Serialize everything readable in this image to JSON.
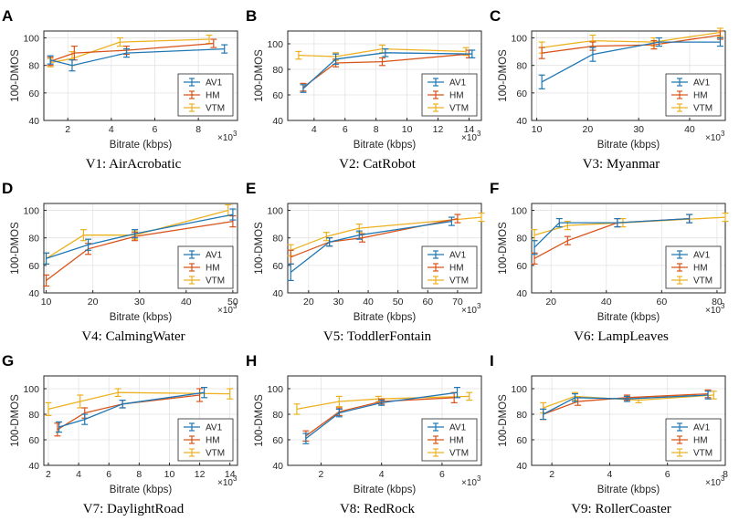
{
  "figure": {
    "y_label": "100-DMOS",
    "x_label": "Bitrate (kbps)",
    "x_multiplier_base": "×10",
    "x_multiplier_exp": "3",
    "legend": [
      "AV1",
      "HM",
      "VTM"
    ],
    "colors": {
      "AV1": "#1f77b4",
      "HM": "#d95319",
      "VTM": "#edb120"
    }
  },
  "chart_data": [
    {
      "type": "line",
      "letter": "A",
      "caption": "V1: AirAcrobatic",
      "xlim": [
        0.9,
        9.8
      ],
      "xticks": [
        2,
        4,
        6,
        8
      ],
      "ylim": [
        40,
        105
      ],
      "yticks": [
        40,
        60,
        80,
        100
      ],
      "series": [
        {
          "name": "AV1",
          "x": [
            1.2,
            2.2,
            4.7,
            9.2
          ],
          "y": [
            84,
            80,
            89,
            92
          ],
          "err": [
            3,
            4,
            3,
            3
          ]
        },
        {
          "name": "HM",
          "x": [
            1.2,
            2.3,
            4.7,
            8.7
          ],
          "y": [
            83,
            89,
            91,
            96
          ],
          "err": [
            3,
            5,
            3,
            3
          ]
        },
        {
          "name": "VTM",
          "x": [
            1.2,
            2.2,
            4.4,
            8.5
          ],
          "y": [
            82,
            85,
            97,
            99
          ],
          "err": [
            3,
            5,
            3,
            3
          ]
        }
      ]
    },
    {
      "type": "line",
      "letter": "B",
      "caption": "V2: CatRobot",
      "xlim": [
        2.3,
        14.8
      ],
      "xticks": [
        4,
        6,
        8,
        10,
        12,
        14
      ],
      "ylim": [
        40,
        110
      ],
      "yticks": [
        40,
        60,
        80,
        100
      ],
      "series": [
        {
          "name": "AV1",
          "x": [
            3.3,
            5.4,
            8.6,
            14.2
          ],
          "y": [
            65,
            88,
            93,
            92
          ],
          "err": [
            3,
            4,
            3,
            3
          ]
        },
        {
          "name": "HM",
          "x": [
            3.3,
            5.4,
            8.4,
            14.0
          ],
          "y": [
            66,
            85,
            86,
            92
          ],
          "err": [
            3,
            3,
            3,
            3
          ]
        },
        {
          "name": "VTM",
          "x": [
            3.0,
            5.4,
            8.4,
            13.8
          ],
          "y": [
            91,
            90,
            96,
            94
          ],
          "err": [
            3,
            3,
            3,
            3
          ]
        }
      ]
    },
    {
      "type": "line",
      "letter": "C",
      "caption": "V3: Myanmar",
      "xlim": [
        9,
        47
      ],
      "xticks": [
        10,
        20,
        30,
        40
      ],
      "ylim": [
        40,
        105
      ],
      "yticks": [
        40,
        60,
        80,
        100
      ],
      "series": [
        {
          "name": "AV1",
          "x": [
            11,
            21,
            34,
            46
          ],
          "y": [
            68,
            88,
            97,
            97
          ],
          "err": [
            5,
            5,
            3,
            3
          ]
        },
        {
          "name": "HM",
          "x": [
            11,
            21,
            33,
            46
          ],
          "y": [
            89,
            94,
            95,
            102
          ],
          "err": [
            4,
            3,
            3,
            3
          ]
        },
        {
          "name": "VTM",
          "x": [
            11,
            21,
            33,
            46
          ],
          "y": [
            93,
            98,
            97,
            104
          ],
          "err": [
            4,
            4,
            3,
            3
          ]
        }
      ]
    },
    {
      "type": "line",
      "letter": "D",
      "caption": "V4: CalmingWater",
      "xlim": [
        9.5,
        51
      ],
      "xticks": [
        10,
        20,
        30,
        40,
        50
      ],
      "ylim": [
        40,
        105
      ],
      "yticks": [
        40,
        60,
        80,
        100
      ],
      "series": [
        {
          "name": "AV1",
          "x": [
            10,
            19,
            29,
            50
          ],
          "y": [
            65,
            75,
            83,
            97
          ],
          "err": [
            4,
            4,
            3,
            4
          ]
        },
        {
          "name": "HM",
          "x": [
            10,
            19,
            29,
            50
          ],
          "y": [
            49,
            72,
            81,
            92
          ],
          "err": [
            4,
            4,
            3,
            4
          ]
        },
        {
          "name": "VTM",
          "x": [
            10,
            18,
            29,
            49
          ],
          "y": [
            65,
            82,
            82,
            100
          ],
          "err": [
            4,
            4,
            3,
            4
          ]
        }
      ]
    },
    {
      "type": "line",
      "letter": "E",
      "caption": "V5: ToddlerFontain",
      "xlim": [
        13,
        78
      ],
      "xticks": [
        20,
        30,
        40,
        50,
        60,
        70
      ],
      "ylim": [
        40,
        105
      ],
      "yticks": [
        40,
        60,
        80,
        100
      ],
      "series": [
        {
          "name": "AV1",
          "x": [
            14,
            27,
            37,
            68
          ],
          "y": [
            55,
            77,
            82,
            92
          ],
          "err": [
            6,
            3,
            3,
            3
          ]
        },
        {
          "name": "HM",
          "x": [
            14,
            27,
            38,
            70
          ],
          "y": [
            66,
            77,
            80,
            94
          ],
          "err": [
            5,
            3,
            3,
            3
          ]
        },
        {
          "name": "VTM",
          "x": [
            14,
            26,
            37,
            78
          ],
          "y": [
            71,
            81,
            87,
            95
          ],
          "err": [
            4,
            3,
            3,
            3
          ]
        }
      ]
    },
    {
      "type": "line",
      "letter": "F",
      "caption": "V6: LampLeaves",
      "xlim": [
        13,
        83
      ],
      "xticks": [
        20,
        40,
        60,
        80
      ],
      "ylim": [
        40,
        105
      ],
      "yticks": [
        40,
        60,
        80,
        100
      ],
      "series": [
        {
          "name": "AV1",
          "x": [
            14,
            23,
            44,
            70
          ],
          "y": [
            73,
            91,
            91,
            94
          ],
          "err": [
            5,
            3,
            3,
            3
          ]
        },
        {
          "name": "HM",
          "x": [
            14,
            26,
            44,
            70
          ],
          "y": [
            65,
            78,
            91,
            94
          ],
          "err": [
            4,
            3,
            3,
            3
          ]
        },
        {
          "name": "VTM",
          "x": [
            14,
            26,
            46,
            83
          ],
          "y": [
            82,
            89,
            91,
            95
          ],
          "err": [
            4,
            3,
            3,
            3
          ]
        }
      ]
    },
    {
      "type": "line",
      "letter": "G",
      "caption": "V7: DaylightRoad",
      "xlim": [
        1.7,
        14.5
      ],
      "xticks": [
        2,
        4,
        6,
        8,
        10,
        12,
        14
      ],
      "ylim": [
        40,
        110
      ],
      "yticks": [
        40,
        60,
        80,
        100
      ],
      "series": [
        {
          "name": "AV1",
          "x": [
            2.7,
            4.4,
            6.9,
            12.3
          ],
          "y": [
            70,
            76,
            88,
            97
          ],
          "err": [
            4,
            4,
            3,
            4
          ]
        },
        {
          "name": "HM",
          "x": [
            2.6,
            4.4,
            6.9,
            12.0
          ],
          "y": [
            68,
            81,
            88,
            95
          ],
          "err": [
            5,
            4,
            3,
            5
          ]
        },
        {
          "name": "VTM",
          "x": [
            2.0,
            4.1,
            6.6,
            14.0
          ],
          "y": [
            84,
            90,
            97,
            96
          ],
          "err": [
            5,
            5,
            3,
            4
          ]
        }
      ]
    },
    {
      "type": "line",
      "letter": "H",
      "caption": "V8: RedRock",
      "xlim": [
        0.9,
        7.3
      ],
      "xticks": [
        2,
        4,
        6
      ],
      "ylim": [
        40,
        110
      ],
      "yticks": [
        40,
        60,
        80,
        100
      ],
      "series": [
        {
          "name": "AV1",
          "x": [
            1.5,
            2.6,
            4.0,
            6.5
          ],
          "y": [
            61,
            81,
            89,
            97
          ],
          "err": [
            4,
            3,
            2,
            4
          ]
        },
        {
          "name": "HM",
          "x": [
            1.5,
            2.6,
            4.0,
            6.4
          ],
          "y": [
            63,
            82,
            90,
            93
          ],
          "err": [
            4,
            3,
            2,
            4
          ]
        },
        {
          "name": "VTM",
          "x": [
            1.2,
            2.6,
            3.9,
            6.9
          ],
          "y": [
            84,
            90,
            92,
            94
          ],
          "err": [
            4,
            4,
            2,
            3
          ]
        }
      ]
    },
    {
      "type": "line",
      "letter": "I",
      "caption": "V9: RollerCoaster",
      "xlim": [
        1.3,
        8.0
      ],
      "xticks": [
        2,
        4,
        6,
        8
      ],
      "ylim": [
        40,
        110
      ],
      "yticks": [
        40,
        60,
        80,
        100
      ],
      "series": [
        {
          "name": "AV1",
          "x": [
            1.7,
            2.8,
            4.6,
            7.4
          ],
          "y": [
            80,
            93,
            92,
            95
          ],
          "err": [
            4,
            3,
            2,
            3
          ]
        },
        {
          "name": "HM",
          "x": [
            1.7,
            2.9,
            4.6,
            7.4
          ],
          "y": [
            80,
            90,
            93,
            96
          ],
          "err": [
            4,
            3,
            2,
            3
          ]
        },
        {
          "name": "VTM",
          "x": [
            1.7,
            2.8,
            5.0,
            7.6
          ],
          "y": [
            85,
            94,
            91,
            95
          ],
          "err": [
            4,
            3,
            2,
            3
          ]
        }
      ]
    }
  ]
}
